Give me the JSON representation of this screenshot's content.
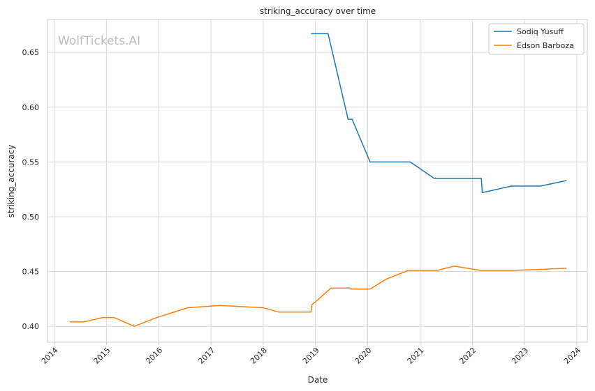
{
  "chart_data": {
    "type": "line",
    "title": "striking_accuracy over time",
    "xlabel": "Date",
    "ylabel": "striking_accuracy",
    "watermark": "WolfTickets.AI",
    "xlim": [
      "2013-11-15",
      "2024-03-15"
    ],
    "ylim": [
      0.3855,
      0.68
    ],
    "x_ticks": [
      "2014",
      "2015",
      "2016",
      "2017",
      "2018",
      "2019",
      "2020",
      "2021",
      "2022",
      "2023",
      "2024"
    ],
    "y_ticks": [
      "0.40",
      "0.45",
      "0.50",
      "0.55",
      "0.60",
      "0.65"
    ],
    "grid": true,
    "legend_position": "top-right",
    "series": [
      {
        "name": "Sodiq Yusuff",
        "color": "#1f77b4",
        "points": [
          [
            "2018-12-01",
            0.667
          ],
          [
            "2019-03-30",
            0.667
          ],
          [
            "2019-08-17",
            0.589
          ],
          [
            "2019-09-14",
            0.589
          ],
          [
            "2020-01-18",
            0.55
          ],
          [
            "2020-10-24",
            0.55
          ],
          [
            "2021-04-10",
            0.535
          ],
          [
            "2022-03-05",
            0.535
          ],
          [
            "2022-03-12",
            0.522
          ],
          [
            "2022-10-01",
            0.528
          ],
          [
            "2023-04-22",
            0.528
          ],
          [
            "2023-10-21",
            0.533
          ]
        ]
      },
      {
        "name": "Edson Barboza",
        "color": "#ff7f0e",
        "points": [
          [
            "2014-04-19",
            0.404
          ],
          [
            "2014-07-26",
            0.404
          ],
          [
            "2014-12-06",
            0.408
          ],
          [
            "2015-02-22",
            0.408
          ],
          [
            "2015-07-15",
            0.4
          ],
          [
            "2015-12-19",
            0.408
          ],
          [
            "2016-07-23",
            0.417
          ],
          [
            "2017-03-04",
            0.419
          ],
          [
            "2017-12-30",
            0.417
          ],
          [
            "2018-04-21",
            0.413
          ],
          [
            "2018-11-30",
            0.413
          ],
          [
            "2018-12-08",
            0.42
          ],
          [
            "2018-12-29",
            0.422
          ],
          [
            "2019-04-20",
            0.435
          ],
          [
            "2019-08-31",
            0.435
          ],
          [
            "2019-09-07",
            0.434
          ],
          [
            "2020-01-18",
            0.434
          ],
          [
            "2020-05-09",
            0.443
          ],
          [
            "2020-10-10",
            0.451
          ],
          [
            "2021-05-01",
            0.451
          ],
          [
            "2021-08-28",
            0.455
          ],
          [
            "2022-02-26",
            0.451
          ],
          [
            "2022-10-15",
            0.451
          ],
          [
            "2023-04-22",
            0.452
          ],
          [
            "2023-10-21",
            0.453
          ]
        ]
      }
    ]
  }
}
